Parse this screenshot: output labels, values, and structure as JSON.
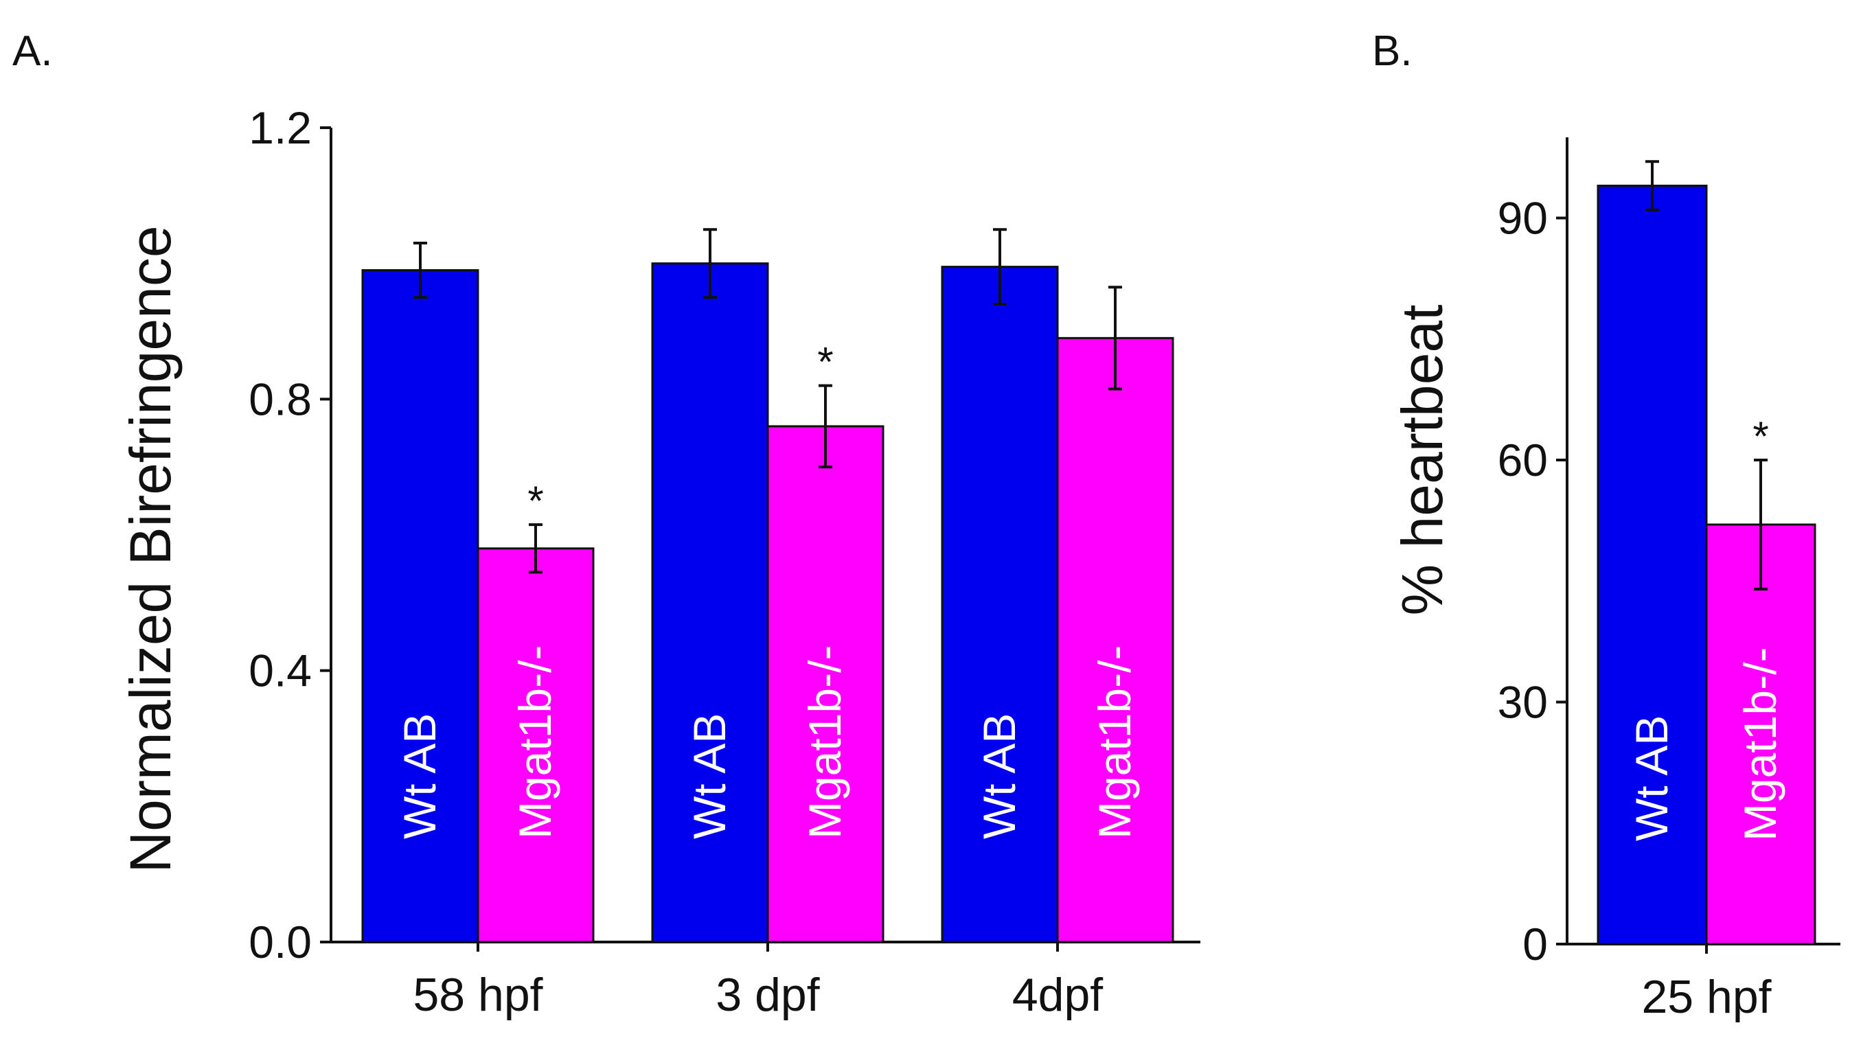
{
  "chart_data": [
    {
      "panel": "A.",
      "type": "bar",
      "ylabel": "Normalized Birefringence",
      "xlabel": "",
      "ylim": [
        0,
        1.2
      ],
      "yticks": [
        "0.0",
        "0.4",
        "0.8",
        "1.2"
      ],
      "categories": [
        "58 hpf",
        "3 dpf",
        "4dpf"
      ],
      "series": [
        {
          "name": "Wt AB",
          "color": "#0000ee",
          "values": [
            0.99,
            1.0,
            0.995
          ],
          "errors": [
            0.04,
            0.05,
            0.055
          ]
        },
        {
          "name": "Mgat1b-/-",
          "color": "#ff00ff",
          "values": [
            0.58,
            0.76,
            0.89
          ],
          "errors": [
            0.035,
            0.06,
            0.075
          ]
        }
      ],
      "significance": [
        "*",
        "*",
        ""
      ]
    },
    {
      "panel": "B.",
      "type": "bar",
      "ylabel": "% heartbeat",
      "xlabel": "",
      "ylim": [
        0,
        100
      ],
      "yticks": [
        "0",
        "30",
        "60",
        "90"
      ],
      "categories": [
        "25 hpf"
      ],
      "series": [
        {
          "name": "Wt AB",
          "color": "#0000ee",
          "values": [
            94
          ],
          "errors": [
            3
          ]
        },
        {
          "name": "Mgat1b-/-",
          "color": "#ff00ff",
          "values": [
            52
          ],
          "errors": [
            8
          ]
        }
      ],
      "significance": [
        "*"
      ]
    }
  ]
}
